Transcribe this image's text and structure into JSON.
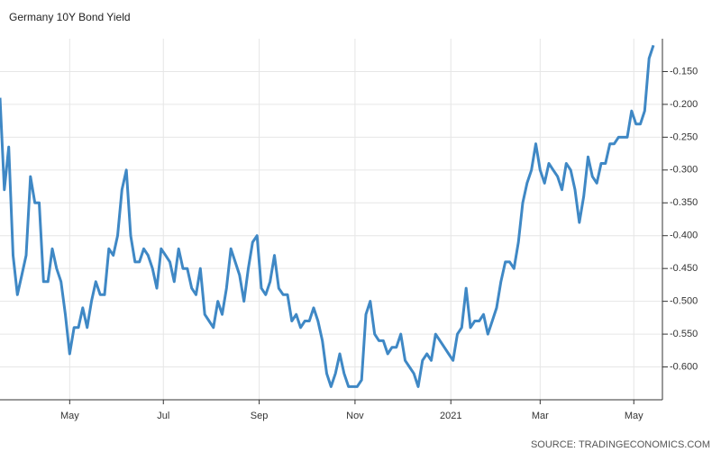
{
  "chart_data": {
    "type": "line",
    "title": "Germany 10Y Bond Yield",
    "source": "SOURCE: TRADINGECONOMICS.COM",
    "color": "#3f88c5",
    "grid": true,
    "axis_side": "right",
    "xlim": [
      0,
      150
    ],
    "xticks": [
      {
        "value": 16,
        "label": "May"
      },
      {
        "value": 37.5,
        "label": "Jul"
      },
      {
        "value": 59.5,
        "label": "Sep"
      },
      {
        "value": 81.5,
        "label": "Nov"
      },
      {
        "value": 103.5,
        "label": "2021"
      },
      {
        "value": 124,
        "label": "Mar"
      },
      {
        "value": 145.5,
        "label": "May"
      }
    ],
    "ylim": [
      -0.65,
      -0.1
    ],
    "yticks": [
      {
        "value": -0.15,
        "label": "-0.150"
      },
      {
        "value": -0.2,
        "label": "-0.200"
      },
      {
        "value": -0.25,
        "label": "-0.250"
      },
      {
        "value": -0.3,
        "label": "-0.300"
      },
      {
        "value": -0.35,
        "label": "-0.350"
      },
      {
        "value": -0.4,
        "label": "-0.400"
      },
      {
        "value": -0.45,
        "label": "-0.450"
      },
      {
        "value": -0.5,
        "label": "-0.500"
      },
      {
        "value": -0.55,
        "label": "-0.550"
      },
      {
        "value": -0.6,
        "label": "-0.600"
      }
    ],
    "values": [
      -0.19,
      -0.33,
      -0.265,
      -0.43,
      -0.49,
      -0.46,
      -0.43,
      -0.31,
      -0.35,
      -0.35,
      -0.47,
      -0.47,
      -0.42,
      -0.45,
      -0.47,
      -0.52,
      -0.58,
      -0.54,
      -0.54,
      -0.51,
      -0.54,
      -0.5,
      -0.47,
      -0.49,
      -0.49,
      -0.42,
      -0.43,
      -0.4,
      -0.33,
      -0.3,
      -0.4,
      -0.44,
      -0.44,
      -0.42,
      -0.43,
      -0.45,
      -0.48,
      -0.42,
      -0.43,
      -0.44,
      -0.47,
      -0.42,
      -0.45,
      -0.45,
      -0.48,
      -0.49,
      -0.45,
      -0.52,
      -0.53,
      -0.54,
      -0.5,
      -0.52,
      -0.48,
      -0.42,
      -0.44,
      -0.46,
      -0.5,
      -0.45,
      -0.41,
      -0.4,
      -0.48,
      -0.49,
      -0.47,
      -0.43,
      -0.48,
      -0.49,
      -0.49,
      -0.53,
      -0.52,
      -0.54,
      -0.53,
      -0.53,
      -0.51,
      -0.53,
      -0.56,
      -0.61,
      -0.63,
      -0.61,
      -0.58,
      -0.61,
      -0.63,
      -0.63,
      -0.63,
      -0.62,
      -0.52,
      -0.5,
      -0.55,
      -0.56,
      -0.56,
      -0.58,
      -0.57,
      -0.57,
      -0.55,
      -0.59,
      -0.6,
      -0.61,
      -0.63,
      -0.59,
      -0.58,
      -0.59,
      -0.55,
      -0.56,
      -0.57,
      -0.58,
      -0.59,
      -0.55,
      -0.54,
      -0.48,
      -0.54,
      -0.53,
      -0.53,
      -0.52,
      -0.55,
      -0.53,
      -0.51,
      -0.47,
      -0.44,
      -0.44,
      -0.45,
      -0.41,
      -0.35,
      -0.32,
      -0.3,
      -0.26,
      -0.3,
      -0.32,
      -0.29,
      -0.3,
      -0.31,
      -0.33,
      -0.29,
      -0.3,
      -0.33,
      -0.38,
      -0.34,
      -0.28,
      -0.31,
      -0.32,
      -0.29,
      -0.29,
      -0.26,
      -0.26,
      -0.25,
      -0.25,
      -0.25,
      -0.21,
      -0.23,
      -0.23,
      -0.21,
      -0.13,
      -0.11
    ]
  }
}
